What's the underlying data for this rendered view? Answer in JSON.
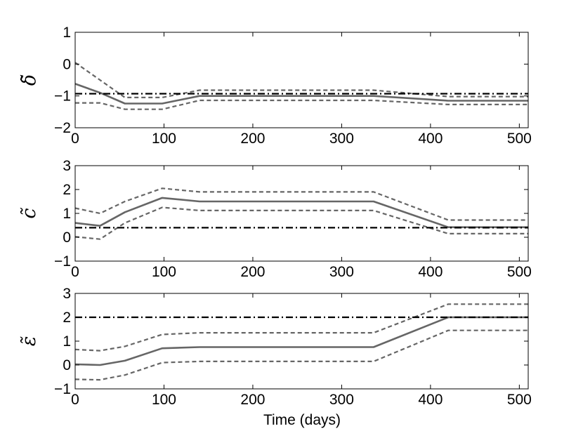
{
  "figure": {
    "xlabel": "Time (days)"
  },
  "chart_data": [
    {
      "type": "line",
      "ylabel": "δ̃",
      "xlim": [
        0,
        510
      ],
      "ylim": [
        -2,
        1
      ],
      "xticks": [
        0,
        100,
        200,
        300,
        400,
        500
      ],
      "yticks": [
        -2,
        -1,
        0,
        1
      ],
      "series": [
        {
          "style": "solid",
          "color": "#666666",
          "x": [
            0,
            28,
            56,
            98,
            140,
            336,
            420,
            510
          ],
          "y": [
            -0.62,
            -0.9,
            -1.24,
            -1.24,
            -1.0,
            -1.0,
            -1.15,
            -1.15
          ]
        },
        {
          "style": "dashed",
          "color": "#666666",
          "x": [
            0,
            28,
            56,
            98,
            140,
            336,
            420,
            510
          ],
          "y": [
            0.05,
            -0.5,
            -1.05,
            -1.05,
            -0.82,
            -0.82,
            -1.02,
            -1.02
          ]
        },
        {
          "style": "dashed",
          "color": "#666666",
          "x": [
            0,
            28,
            56,
            98,
            140,
            336,
            420,
            510
          ],
          "y": [
            -1.22,
            -1.22,
            -1.42,
            -1.42,
            -1.14,
            -1.14,
            -1.27,
            -1.27
          ]
        },
        {
          "style": "dashdot",
          "color": "#000000",
          "x": [
            0,
            510
          ],
          "y": [
            -0.93,
            -0.93
          ]
        }
      ]
    },
    {
      "type": "line",
      "ylabel": "c̃",
      "xlim": [
        0,
        510
      ],
      "ylim": [
        -1,
        3
      ],
      "xticks": [
        0,
        100,
        200,
        300,
        400,
        500
      ],
      "yticks": [
        -1,
        0,
        1,
        2,
        3
      ],
      "series": [
        {
          "style": "solid",
          "color": "#666666",
          "x": [
            0,
            28,
            56,
            98,
            140,
            336,
            420,
            510
          ],
          "y": [
            0.6,
            0.48,
            1.05,
            1.65,
            1.5,
            1.5,
            0.42,
            0.42
          ]
        },
        {
          "style": "dashed",
          "color": "#666666",
          "x": [
            0,
            28,
            56,
            98,
            140,
            336,
            420,
            510
          ],
          "y": [
            1.22,
            1.0,
            1.5,
            2.05,
            1.9,
            1.9,
            0.72,
            0.72
          ]
        },
        {
          "style": "dashed",
          "color": "#666666",
          "x": [
            0,
            28,
            56,
            98,
            140,
            336,
            420,
            510
          ],
          "y": [
            0.02,
            -0.08,
            0.6,
            1.25,
            1.12,
            1.12,
            0.15,
            0.15
          ]
        },
        {
          "style": "dashdot",
          "color": "#000000",
          "x": [
            0,
            510
          ],
          "y": [
            0.4,
            0.4
          ]
        }
      ]
    },
    {
      "type": "line",
      "ylabel": "ε̃",
      "xlim": [
        0,
        510
      ],
      "ylim": [
        -1,
        3
      ],
      "xticks": [
        0,
        100,
        200,
        300,
        400,
        500
      ],
      "yticks": [
        -1,
        0,
        1,
        2,
        3
      ],
      "series": [
        {
          "style": "solid",
          "color": "#666666",
          "x": [
            0,
            28,
            56,
            98,
            140,
            336,
            420,
            510
          ],
          "y": [
            0.03,
            0.0,
            0.18,
            0.7,
            0.75,
            0.75,
            2.0,
            2.0
          ]
        },
        {
          "style": "dashed",
          "color": "#666666",
          "x": [
            0,
            28,
            56,
            98,
            140,
            336,
            420,
            510
          ],
          "y": [
            0.65,
            0.6,
            0.78,
            1.28,
            1.35,
            1.35,
            2.55,
            2.55
          ]
        },
        {
          "style": "dashed",
          "color": "#666666",
          "x": [
            0,
            28,
            56,
            98,
            140,
            336,
            420,
            510
          ],
          "y": [
            -0.6,
            -0.62,
            -0.42,
            0.1,
            0.15,
            0.15,
            1.45,
            1.45
          ]
        },
        {
          "style": "dashdot",
          "color": "#000000",
          "x": [
            0,
            510
          ],
          "y": [
            2.0,
            2.0
          ]
        }
      ]
    }
  ]
}
